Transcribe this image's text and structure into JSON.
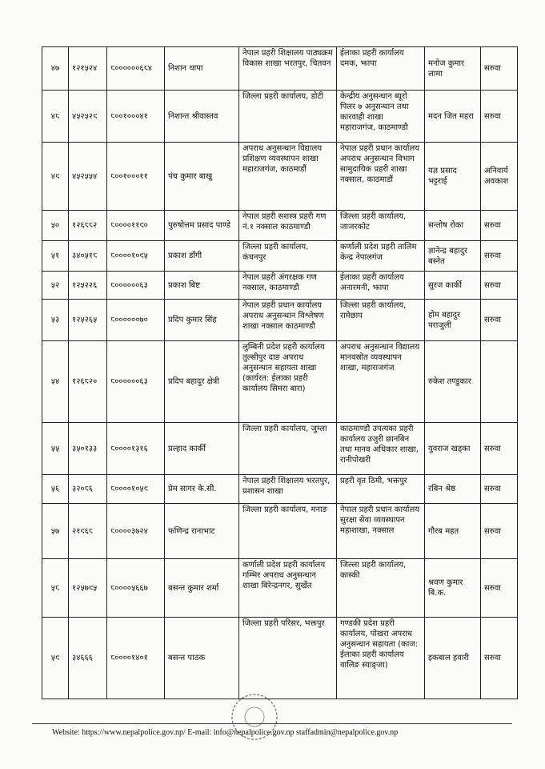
{
  "table": {
    "rows": [
      {
        "sn": "४७",
        "id": "१२१५२४",
        "code": "८००००००६८४",
        "name": "निशान थापा",
        "from": "नेपाल प्रहरी शिक्षालय पाठ्यक्रम विकास शाखा भरतपुर, चितवन",
        "to": "ईलाका प्रहरी कार्यालय दमक, झापा",
        "replacement": "मनोज कुमार लामा",
        "remark": "सरुवा"
      },
      {
        "sn": "४८",
        "id": "४५२५२९",
        "code": "८००१०००४१",
        "name": "निशान्त श्रीवास्तव",
        "from": "जिल्ला प्रहरी कार्यालय, डोटी",
        "to": "केन्द्रीय अनुसन्धान ब्यूरो पिलर ७ अनुसन्धान तथा कारवाही शाखा महाराजगंज, काठमाण्डौ",
        "replacement": "मदन जित महरा",
        "remark": "सरुवा"
      },
      {
        "sn": "४९",
        "id": "४५२५५४",
        "code": "८००१०००११",
        "name": "पंच कुमार बाखु",
        "from": "अपराध अनुसन्धान विद्यालय प्रशिक्षण व्यवस्थापन शाखा महाराजगंज, काठमाडौं",
        "to": "नेपाल प्रहरी प्रधान कार्यालय अपराध अनुसन्धान विभाग सामुदायिक प्रहरी शाखा नक्साल, काठमाडौं",
        "replacement": "यज्ञ प्रसाद भट्टराई",
        "remark": "अनिवार्य अवकाश"
      },
      {
        "sn": "५०",
        "id": "१२६८८२",
        "code": "८००००११९०",
        "name": "पुरुषोत्तम प्रसाद पाण्डे",
        "from": "नेपाल प्रहरी सशस्त्र प्रहरी गण नं.१ नक्साल काठमाण्डौ",
        "to": "जिल्ला प्रहरी कार्यालय, जाजरकोट",
        "replacement": "सन्तोष रोका",
        "remark": "सरुवा"
      },
      {
        "sn": "५१",
        "id": "३४०५१८",
        "code": "८००००१०९५",
        "name": "प्रकाश डाँगी",
        "from": "जिल्ला प्रहरी कार्यालय, कंचनपुर",
        "to": "कर्णाली प्रदेश प्रहरी तालिम केन्द्र नेपालगंज",
        "replacement": "ज्ञानेन्द्र बहादुर बस्नेत",
        "remark": "सरुवा"
      },
      {
        "sn": "५२",
        "id": "१२५२२६",
        "code": "८००००००६३",
        "name": "प्रकाश बिष्ट",
        "from": "नेपाल प्रहरी अंगरक्षक गण नक्साल, काठमाण्डौ",
        "to": "ईलाका प्रहरी कार्यालय अनारमनी, झापा",
        "replacement": "सुरज कार्की",
        "remark": "सरुवा"
      },
      {
        "sn": "५३",
        "id": "१२५२६५",
        "code": "८००००००७०",
        "name": "प्रदिप कुमार सिंह",
        "from": "नेपाल प्रहरी प्रधान कार्यालय अपराध अनुसन्धान विश्लेषण शाखा नक्साल काठमाण्डौ",
        "to": "जिल्ला प्रहरी कार्यालय, रामेछाप",
        "replacement": "होम बहादुर पराजुली",
        "remark": "सरुवा"
      },
      {
        "sn": "५४",
        "id": "१२६८२०",
        "code": "८००००००६३",
        "name": "प्रदिप बहादुर क्षेत्री",
        "from": "लुम्बिनी प्रदेश प्रहरी कार्यालय तुल्सीपुर दाङ अपराध अनुसन्धान सहायता शाखा (कार्यरत: ईलाका प्रहरी कार्यालय सिमरा बारा)",
        "to": "अपराध अनुसन्धान विद्यालय मानवस्रोत व्यवस्थापन शाखा, महाराजगंज",
        "replacement": "रुकेश तण्डुकार"
      },
      {
        "sn": "५५",
        "id": "३५०१३३",
        "code": "८००००१३१६",
        "name": "प्रल्हाद कार्की",
        "from": "जिल्ला प्रहरी कार्यालय, जुम्ला",
        "to": "काठमाण्डौ उपत्यका प्रहरी कार्यालय उजुरी छानबिन तथा मानव अधिकार शाखा, रानीपोखरी",
        "replacement": "युवराज खड्का",
        "remark": "सरुवा"
      },
      {
        "sn": "५६",
        "id": "३२०८६",
        "code": "८००००१०५९",
        "name": "प्रेम सागर के.सी.",
        "from": "नेपाल प्रहरी शिक्षालय भरतपुर, प्रशासन शाखा",
        "to": "प्रहरी वृत ठिमी, भक्तपुर",
        "replacement": "रबिन श्रेष्ठ",
        "remark": "सरुवा"
      },
      {
        "sn": "५७",
        "id": "२१९६८",
        "code": "८००००३७२४",
        "name": "फणिन्द्र रानाभाट",
        "from": "जिल्ला प्रहरी कार्यालय, मनाङ",
        "to": "नेपाल प्रहरी प्रधान कार्यालय सुरक्षा सेवा व्यवस्थापन महाशाखा, नक्साल",
        "replacement": "गौरब महत",
        "remark": "सरुवा"
      },
      {
        "sn": "५८",
        "id": "१२५७९५",
        "code": "८००००५६६७",
        "name": "बसन्त कुमार शर्मा",
        "from": "कर्णाली प्रदेश प्रहरी कार्यालय गम्भिर अपराध अनुसन्धान शाखा बिरेन्द्रनगर, सुर्खेत",
        "to": "जिल्ला प्रहरी कार्यालय, कास्की",
        "replacement": "श्रवण कुमार बि.क.",
        "remark": "सरुवा"
      },
      {
        "sn": "५९",
        "id": "३४६६६",
        "code": "८००००१४०१",
        "name": "बसन्त पाठक",
        "from": "जिल्ला प्रहरी परिसर, भक्तपुर",
        "to": "गण्डकी प्रदेश प्रहरी कार्यालय, पोखरा अपराध अनुसन्धान सहायता (काज: ईलाका प्रहरी कार्यालय वालिङ स्याङ्जा)",
        "replacement": "इकबाल हवारी",
        "remark": "सरुवा"
      }
    ]
  },
  "footer": {
    "text": "Website: https://www.nepalpolice.gov.np/ E-mail: info@nepalpolice.gov.np staffadmin@nepalpolice.gov.np"
  }
}
